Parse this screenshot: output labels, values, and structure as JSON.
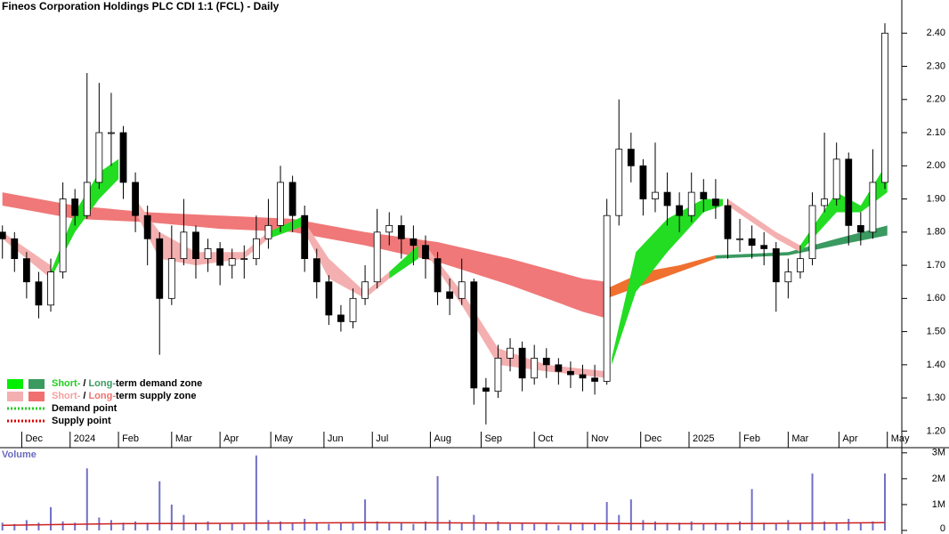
{
  "chart_data": {
    "type": "candlestick",
    "title": "Fineos Corporation Holdings PLC CDI 1:1 (FCL) - Daily",
    "x": [
      0,
      5,
      10,
      15,
      20,
      25,
      30,
      35,
      40,
      45,
      50,
      55,
      60,
      65,
      70,
      75,
      80,
      85,
      90,
      95,
      100,
      105,
      110,
      115,
      120,
      125,
      130,
      135,
      140,
      145,
      150,
      155,
      160,
      165,
      170,
      175,
      180,
      185,
      190,
      195,
      200,
      205,
      210,
      215,
      220,
      225,
      230,
      235,
      240,
      245,
      250,
      255,
      260,
      265,
      270,
      275,
      280,
      285,
      290,
      295,
      300,
      305,
      310,
      315,
      320,
      325,
      330,
      335,
      340,
      345,
      350,
      355,
      360,
      365
    ],
    "ohlc": [
      [
        1.8,
        1.82,
        1.72,
        1.78
      ],
      [
        1.78,
        1.8,
        1.68,
        1.72
      ],
      [
        1.72,
        1.74,
        1.6,
        1.65
      ],
      [
        1.65,
        1.68,
        1.54,
        1.58
      ],
      [
        1.58,
        1.72,
        1.56,
        1.68
      ],
      [
        1.68,
        1.95,
        1.66,
        1.9
      ],
      [
        1.9,
        1.93,
        1.82,
        1.85
      ],
      [
        1.85,
        2.28,
        1.84,
        1.95
      ],
      [
        1.95,
        2.25,
        1.93,
        2.1
      ],
      [
        2.1,
        2.22,
        2.0,
        2.1
      ],
      [
        2.1,
        2.12,
        1.9,
        1.95
      ],
      [
        1.95,
        1.98,
        1.8,
        1.85
      ],
      [
        1.85,
        1.88,
        1.7,
        1.78
      ],
      [
        1.78,
        1.8,
        1.43,
        1.6
      ],
      [
        1.6,
        1.82,
        1.58,
        1.72
      ],
      [
        1.72,
        1.9,
        1.7,
        1.8
      ],
      [
        1.8,
        1.82,
        1.66,
        1.72
      ],
      [
        1.72,
        1.78,
        1.68,
        1.75
      ],
      [
        1.75,
        1.77,
        1.64,
        1.7
      ],
      [
        1.7,
        1.75,
        1.66,
        1.72
      ],
      [
        1.72,
        1.76,
        1.66,
        1.72
      ],
      [
        1.72,
        1.85,
        1.7,
        1.78
      ],
      [
        1.78,
        1.9,
        1.75,
        1.82
      ],
      [
        1.82,
        2.0,
        1.8,
        1.95
      ],
      [
        1.95,
        1.97,
        1.8,
        1.85
      ],
      [
        1.85,
        1.88,
        1.68,
        1.72
      ],
      [
        1.72,
        1.75,
        1.6,
        1.65
      ],
      [
        1.65,
        1.67,
        1.52,
        1.55
      ],
      [
        1.55,
        1.58,
        1.5,
        1.53
      ],
      [
        1.53,
        1.63,
        1.51,
        1.6
      ],
      [
        1.6,
        1.7,
        1.58,
        1.65
      ],
      [
        1.65,
        1.87,
        1.63,
        1.8
      ],
      [
        1.8,
        1.86,
        1.76,
        1.82
      ],
      [
        1.82,
        1.85,
        1.72,
        1.78
      ],
      [
        1.78,
        1.82,
        1.7,
        1.76
      ],
      [
        1.76,
        1.79,
        1.66,
        1.72
      ],
      [
        1.72,
        1.74,
        1.58,
        1.62
      ],
      [
        1.62,
        1.66,
        1.55,
        1.6
      ],
      [
        1.6,
        1.72,
        1.58,
        1.65
      ],
      [
        1.65,
        1.66,
        1.28,
        1.33
      ],
      [
        1.33,
        1.36,
        1.22,
        1.32
      ],
      [
        1.32,
        1.46,
        1.3,
        1.42
      ],
      [
        1.42,
        1.48,
        1.38,
        1.45
      ],
      [
        1.45,
        1.47,
        1.32,
        1.36
      ],
      [
        1.36,
        1.46,
        1.34,
        1.42
      ],
      [
        1.42,
        1.45,
        1.36,
        1.4
      ],
      [
        1.4,
        1.42,
        1.34,
        1.38
      ],
      [
        1.38,
        1.41,
        1.33,
        1.37
      ],
      [
        1.37,
        1.4,
        1.32,
        1.36
      ],
      [
        1.36,
        1.4,
        1.31,
        1.35
      ],
      [
        1.35,
        1.9,
        1.34,
        1.85
      ],
      [
        1.85,
        2.2,
        1.82,
        2.05
      ],
      [
        2.05,
        2.1,
        1.95,
        2.0
      ],
      [
        2.0,
        2.02,
        1.85,
        1.9
      ],
      [
        1.9,
        2.07,
        1.86,
        1.92
      ],
      [
        1.92,
        1.98,
        1.82,
        1.88
      ],
      [
        1.88,
        1.92,
        1.8,
        1.85
      ],
      [
        1.85,
        1.98,
        1.83,
        1.92
      ],
      [
        1.92,
        1.96,
        1.86,
        1.9
      ],
      [
        1.9,
        1.96,
        1.84,
        1.88
      ],
      [
        1.88,
        1.9,
        1.72,
        1.78
      ],
      [
        1.78,
        1.84,
        1.74,
        1.78
      ],
      [
        1.78,
        1.82,
        1.72,
        1.76
      ],
      [
        1.76,
        1.8,
        1.7,
        1.75
      ],
      [
        1.75,
        1.77,
        1.56,
        1.65
      ],
      [
        1.65,
        1.72,
        1.6,
        1.68
      ],
      [
        1.68,
        1.76,
        1.66,
        1.72
      ],
      [
        1.72,
        1.92,
        1.7,
        1.88
      ],
      [
        1.88,
        2.1,
        1.86,
        1.9
      ],
      [
        1.9,
        2.07,
        1.88,
        2.02
      ],
      [
        2.02,
        2.04,
        1.76,
        1.82
      ],
      [
        1.82,
        1.86,
        1.76,
        1.8
      ],
      [
        1.8,
        2.05,
        1.78,
        1.95
      ],
      [
        1.95,
        2.43,
        1.93,
        2.4
      ]
    ],
    "xlim": [
      -1,
      372
    ],
    "xticks": [
      {
        "value": 8,
        "label": "Dec"
      },
      {
        "value": 28,
        "label": "2024"
      },
      {
        "value": 48,
        "label": "Feb"
      },
      {
        "value": 70,
        "label": "Mar"
      },
      {
        "value": 90,
        "label": "Apr"
      },
      {
        "value": 111,
        "label": "May"
      },
      {
        "value": 133,
        "label": "Jun"
      },
      {
        "value": 153,
        "label": "Jul"
      },
      {
        "value": 177,
        "label": "Aug"
      },
      {
        "value": 198,
        "label": "Sep"
      },
      {
        "value": 220,
        "label": "Oct"
      },
      {
        "value": 242,
        "label": "Nov"
      },
      {
        "value": 264,
        "label": "Dec"
      },
      {
        "value": 284,
        "label": "2025"
      },
      {
        "value": 305,
        "label": "Feb"
      },
      {
        "value": 325,
        "label": "Mar"
      },
      {
        "value": 346,
        "label": "Apr"
      },
      {
        "value": 366,
        "label": "May"
      }
    ],
    "ylim": [
      1.15,
      2.5
    ],
    "yticks": [
      {
        "value": 1.2,
        "label": "1.20"
      },
      {
        "value": 1.3,
        "label": "1.30"
      },
      {
        "value": 1.4,
        "label": "1.40"
      },
      {
        "value": 1.5,
        "label": "1.50"
      },
      {
        "value": 1.6,
        "label": "1.60"
      },
      {
        "value": 1.7,
        "label": "1.70"
      },
      {
        "value": 1.8,
        "label": "1.80"
      },
      {
        "value": 1.9,
        "label": "1.90"
      },
      {
        "value": 2.0,
        "label": "2.00"
      },
      {
        "value": 2.1,
        "label": "2.10"
      },
      {
        "value": 2.2,
        "label": "2.20"
      },
      {
        "value": 2.3,
        "label": "2.30"
      },
      {
        "value": 2.4,
        "label": "2.40"
      }
    ],
    "bands": [
      {
        "color": "#f07878",
        "x": [
          0,
          30,
          60,
          90,
          120,
          150,
          180,
          210,
          240,
          250
        ],
        "upper": [
          1.92,
          1.88,
          1.86,
          1.85,
          1.84,
          1.8,
          1.77,
          1.72,
          1.66,
          1.65
        ],
        "lower": [
          1.88,
          1.84,
          1.83,
          1.81,
          1.8,
          1.76,
          1.71,
          1.64,
          1.56,
          1.54
        ]
      },
      {
        "color": "#f07030",
        "x": [
          250,
          265,
          280,
          295
        ],
        "upper": [
          1.63,
          1.68,
          1.7,
          1.73
        ],
        "lower": [
          1.6,
          1.64,
          1.68,
          1.72
        ]
      },
      {
        "color": "#3a9a60",
        "x": [
          295,
          325,
          345,
          366
        ],
        "upper": [
          1.73,
          1.74,
          1.78,
          1.82
        ],
        "lower": [
          1.72,
          1.73,
          1.76,
          1.79
        ]
      },
      {
        "color": "#f4b0b0",
        "x": [
          0,
          20
        ],
        "upper": [
          1.8,
          1.7
        ],
        "lower": [
          1.78,
          1.66
        ]
      },
      {
        "color": "#22dd22",
        "x": [
          20,
          30,
          40,
          48
        ],
        "upper": [
          1.68,
          1.86,
          1.98,
          2.02
        ],
        "lower": [
          1.66,
          1.8,
          1.9,
          1.96
        ]
      },
      {
        "color": "#f4b0b0",
        "x": [
          55,
          65,
          80,
          100,
          110
        ],
        "upper": [
          1.9,
          1.8,
          1.74,
          1.74,
          1.8
        ],
        "lower": [
          1.86,
          1.72,
          1.7,
          1.72,
          1.78
        ]
      },
      {
        "color": "#22dd22",
        "x": [
          110,
          125
        ],
        "upper": [
          1.8,
          1.85
        ],
        "lower": [
          1.78,
          1.82
        ]
      },
      {
        "color": "#f4b0b0",
        "x": [
          125,
          135,
          150,
          160
        ],
        "upper": [
          1.83,
          1.72,
          1.62,
          1.68
        ],
        "lower": [
          1.8,
          1.66,
          1.6,
          1.66
        ]
      },
      {
        "color": "#22dd22",
        "x": [
          160,
          172
        ],
        "upper": [
          1.68,
          1.76
        ],
        "lower": [
          1.66,
          1.72
        ]
      },
      {
        "color": "#f4b0b0",
        "x": [
          175,
          190,
          205,
          225,
          250
        ],
        "upper": [
          1.76,
          1.62,
          1.45,
          1.4,
          1.38
        ],
        "lower": [
          1.74,
          1.58,
          1.4,
          1.38,
          1.36
        ]
      },
      {
        "color": "#22dd22",
        "x": [
          252,
          262,
          275,
          290,
          298
        ],
        "upper": [
          1.42,
          1.74,
          1.84,
          1.9,
          1.9
        ],
        "lower": [
          1.4,
          1.62,
          1.74,
          1.86,
          1.88
        ]
      },
      {
        "color": "#f4b0b0",
        "x": [
          300,
          320,
          330
        ],
        "upper": [
          1.9,
          1.8,
          1.76
        ],
        "lower": [
          1.88,
          1.78,
          1.74
        ]
      },
      {
        "color": "#22dd22",
        "x": [
          330,
          345,
          355,
          366
        ],
        "upper": [
          1.76,
          1.92,
          1.88,
          2.01
        ],
        "lower": [
          1.74,
          1.86,
          1.86,
          1.92
        ]
      }
    ],
    "legend": [
      {
        "swatches": [
          "#00ee00",
          "#3a9a60"
        ],
        "texts": [
          {
            "text": "Short-",
            "color": "#22cc22"
          },
          {
            "text": "/",
            "color": "#000000"
          },
          {
            "text": "Long-",
            "color": "#3a9a60"
          },
          {
            "text": "term demand zone",
            "color": "#000000"
          }
        ]
      },
      {
        "swatches": [
          "#f4b0b0",
          "#f07070"
        ],
        "texts": [
          {
            "text": "Short-",
            "color": "#f4a0a0"
          },
          {
            "text": "/",
            "color": "#000000"
          },
          {
            "text": "Long-",
            "color": "#f07070"
          },
          {
            "text": "term supply zone",
            "color": "#000000"
          }
        ]
      },
      {
        "dotted": "#22cc22",
        "texts": [
          {
            "text": "Demand point",
            "color": "#000000"
          }
        ]
      },
      {
        "dotted": "#dd0000",
        "texts": [
          {
            "text": "Supply point",
            "color": "#000000"
          }
        ]
      }
    ],
    "volume": {
      "label": "Volume",
      "color": "#7070c8",
      "values": [
        300000,
        250000,
        400000,
        300000,
        900000,
        350000,
        300000,
        2400000,
        500000,
        400000,
        300000,
        350000,
        300000,
        1900000,
        1000000,
        600000,
        300000,
        350000,
        250000,
        300000,
        250000,
        2900000,
        400000,
        350000,
        300000,
        450000,
        300000,
        250000,
        300000,
        300000,
        1200000,
        350000,
        300000,
        300000,
        250000,
        350000,
        2100000,
        400000,
        300000,
        600000,
        300000,
        350000,
        250000,
        300000,
        250000,
        300000,
        200000,
        250000,
        300000,
        250000,
        1100000,
        600000,
        1200000,
        400000,
        350000,
        300000,
        300000,
        350000,
        250000,
        300000,
        300000,
        350000,
        1600000,
        300000,
        250000,
        400000,
        300000,
        2200000,
        350000,
        300000,
        450000,
        300000,
        350000,
        2200000
      ],
      "ylim": [
        0,
        3200000
      ],
      "yticks": [
        {
          "value": 0,
          "label": "0"
        },
        {
          "value": 1000000,
          "label": "1M"
        },
        {
          "value": 2000000,
          "label": "2M"
        },
        {
          "value": 3000000,
          "label": "3M"
        }
      ],
      "avg": {
        "color": "#cc2020",
        "x": [
          0,
          50,
          100,
          150,
          200,
          250,
          300,
          365
        ],
        "values": [
          200000,
          260000,
          280000,
          300000,
          290000,
          270000,
          260000,
          300000
        ]
      }
    }
  }
}
